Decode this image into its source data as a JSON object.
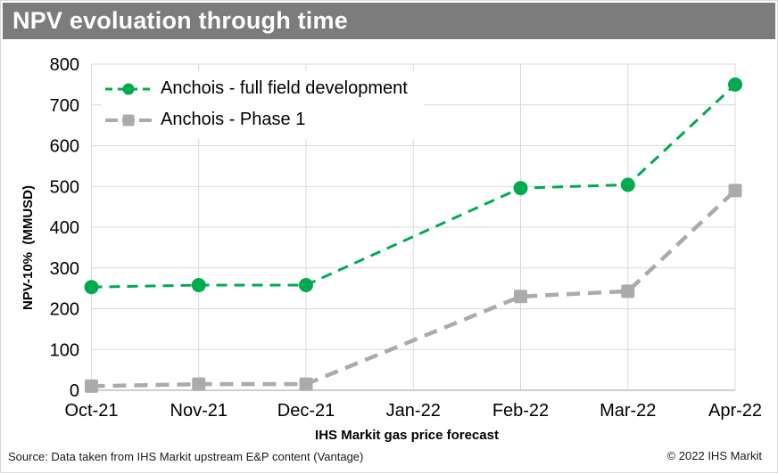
{
  "window": {
    "title": "NPV evoluation through time"
  },
  "chart_data": {
    "type": "line",
    "title": "NPV evoluation through time",
    "categories": [
      "Oct-21",
      "Nov-21",
      "Dec-21",
      "Jan-22",
      "Feb-22",
      "Mar-22",
      "Apr-22"
    ],
    "series": [
      {
        "name": "Anchois - full field development",
        "color": "#00ab50",
        "marker": "circle",
        "line_style": "dashed",
        "values": [
          253,
          258,
          258,
          null,
          496,
          504,
          750
        ]
      },
      {
        "name": "Anchois - Phase 1",
        "color": "#ababab",
        "marker": "square",
        "line_style": "dashed",
        "values": [
          10,
          15,
          15,
          null,
          230,
          243,
          490
        ]
      }
    ],
    "xlabel": "IHS Markit gas price forecast",
    "ylabel": "NPV-10%  (MMUSD)",
    "ylim": [
      0,
      800
    ],
    "yticks": [
      0,
      100,
      200,
      300,
      400,
      500,
      600,
      700,
      800
    ],
    "grid": true,
    "legend_position": "top-left",
    "note": "No data points plotted at Jan-22; lines connect Dec-21 directly to Feb-22"
  },
  "footer": {
    "source": "Source: Data taken from IHS Markit upstream E&P content (Vantage)",
    "copyright": "© 2022 IHS Markit"
  },
  "colors": {
    "title_bar_bg": "#7c7c7c",
    "title_text": "#ffffff",
    "gridline": "#d9d9d9",
    "axis_line": "#bfbfbf",
    "tick_text": "#000000"
  }
}
